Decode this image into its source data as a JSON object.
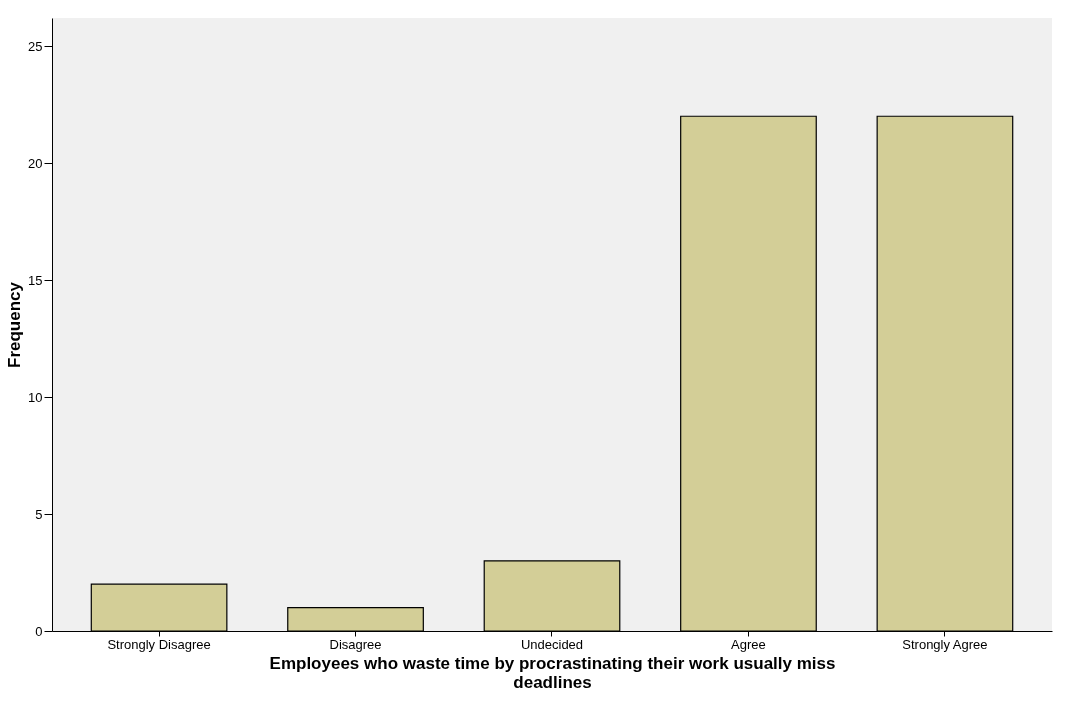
{
  "chart_data": {
    "type": "bar",
    "xlabel": "Employees who waste time by procrastinating their work usually miss deadlines",
    "ylabel": "Frequency",
    "categories": [
      "Strongly Disagree",
      "Disagree",
      "Undecided",
      "Agree",
      "Strongly Agree"
    ],
    "values": [
      2,
      1,
      3,
      22,
      22
    ],
    "color": "#d3ce97",
    "ylim": [
      0,
      26.2
    ],
    "yticks": [
      0,
      5,
      10,
      15,
      20,
      25
    ],
    "grid": false
  }
}
